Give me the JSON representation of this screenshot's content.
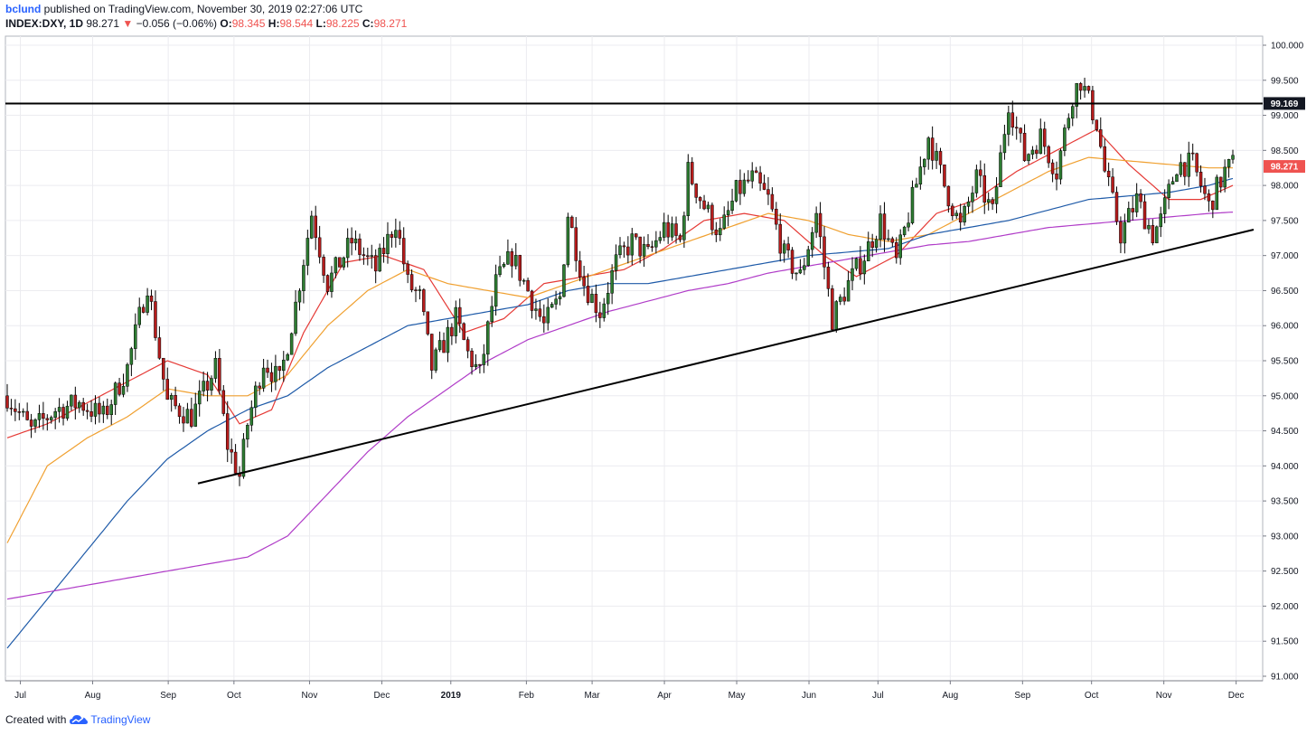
{
  "header": {
    "author": "bclund",
    "published_text": " published on TradingView.com, November 30, 2019 02:27:06 UTC",
    "symbol": "INDEX:DXY, 1D",
    "last": "98.271",
    "change": "−0.056 (−0.06%)",
    "open_label": "O:",
    "open": "98.345",
    "high_label": "H:",
    "high": "98.544",
    "low_label": "L:",
    "low": "98.225",
    "close_label": "C:",
    "close": "98.271"
  },
  "footer": {
    "created_with": "Created with",
    "brand": "TradingView"
  },
  "colors": {
    "up": "#26a69a",
    "up_body": "#2e7d32",
    "down": "#b71c1c",
    "ma_red": "#e53935",
    "ma_orange": "#f0a030",
    "ma_blue": "#1e5aa8",
    "ma_purple": "#b03cc8",
    "price_badge": "#ef5350"
  },
  "chart_data": {
    "type": "candlestick",
    "y_axis": {
      "ylim": [
        91.0,
        100.0
      ],
      "ticks": [
        "100.000",
        "99.500",
        "99.000",
        "98.500",
        "98.000",
        "97.500",
        "97.000",
        "96.500",
        "96.000",
        "95.500",
        "95.000",
        "94.500",
        "94.000",
        "93.500",
        "93.000",
        "92.500",
        "92.000",
        "91.500",
        "91.000"
      ]
    },
    "x_axis": {
      "labels": [
        "Jul",
        "Aug",
        "Sep",
        "Oct",
        "Nov",
        "Dec",
        "2019",
        "Feb",
        "Mar",
        "Apr",
        "May",
        "Jun",
        "Jul",
        "Aug",
        "Sep",
        "Oct",
        "Nov",
        "Dec"
      ]
    },
    "price_labels": [
      {
        "text": "99.169",
        "value": 99.169,
        "style": "dark"
      },
      {
        "text": "98.271",
        "value": 98.271,
        "style": "red"
      }
    ],
    "horizontal_line": {
      "value": 99.169
    },
    "trendline": {
      "from": [
        "Sep 2018",
        93.75
      ],
      "to": [
        "Dec 2019",
        97.37
      ]
    },
    "price_path": [
      [
        0,
        95.0
      ],
      [
        6,
        94.5
      ],
      [
        12,
        94.8
      ],
      [
        18,
        94.9
      ],
      [
        24,
        94.7
      ],
      [
        30,
        95.4
      ],
      [
        35,
        96.6
      ],
      [
        40,
        94.9
      ],
      [
        46,
        94.7
      ],
      [
        52,
        95.4
      ],
      [
        55,
        94.3
      ],
      [
        58,
        93.85
      ],
      [
        60,
        94.6
      ],
      [
        64,
        95.5
      ],
      [
        68,
        95.2
      ],
      [
        72,
        96.3
      ],
      [
        76,
        97.6
      ],
      [
        80,
        96.6
      ],
      [
        86,
        97.2
      ],
      [
        92,
        96.8
      ],
      [
        97,
        97.5
      ],
      [
        100,
        96.6
      ],
      [
        103,
        96.4
      ],
      [
        106,
        95.4
      ],
      [
        112,
        96.1
      ],
      [
        115,
        95.6
      ],
      [
        118,
        95.3
      ],
      [
        122,
        96.6
      ],
      [
        126,
        97.0
      ],
      [
        130,
        96.5
      ],
      [
        134,
        96.0
      ],
      [
        138,
        96.4
      ],
      [
        140,
        97.6
      ],
      [
        144,
        96.6
      ],
      [
        148,
        96.2
      ],
      [
        152,
        96.9
      ],
      [
        156,
        97.2
      ],
      [
        160,
        97.0
      ],
      [
        164,
        97.4
      ],
      [
        168,
        97.2
      ],
      [
        170,
        98.2
      ],
      [
        174,
        97.7
      ],
      [
        178,
        97.3
      ],
      [
        182,
        97.9
      ],
      [
        186,
        98.1
      ],
      [
        190,
        97.8
      ],
      [
        194,
        97.0
      ],
      [
        198,
        96.7
      ],
      [
        202,
        97.6
      ],
      [
        206,
        96.1
      ],
      [
        210,
        96.6
      ],
      [
        214,
        97.0
      ],
      [
        218,
        97.5
      ],
      [
        222,
        96.9
      ],
      [
        226,
        97.8
      ],
      [
        230,
        98.7
      ],
      [
        234,
        98.0
      ],
      [
        238,
        97.4
      ],
      [
        242,
        98.1
      ],
      [
        246,
        97.6
      ],
      [
        250,
        99.2
      ],
      [
        254,
        98.4
      ],
      [
        258,
        98.7
      ],
      [
        262,
        98.2
      ],
      [
        266,
        99.3
      ],
      [
        268,
        99.5
      ],
      [
        272,
        98.9
      ],
      [
        274,
        98.2
      ],
      [
        278,
        97.3
      ],
      [
        282,
        97.8
      ],
      [
        286,
        97.3
      ],
      [
        288,
        97.5
      ],
      [
        292,
        98.3
      ],
      [
        296,
        98.3
      ],
      [
        300,
        97.7
      ],
      [
        304,
        98.2
      ],
      [
        306,
        98.3
      ]
    ],
    "moving_averages": [
      {
        "color": "ma_red",
        "path": [
          [
            0,
            94.4
          ],
          [
            10,
            94.6
          ],
          [
            20,
            94.9
          ],
          [
            30,
            95.2
          ],
          [
            40,
            95.5
          ],
          [
            50,
            95.3
          ],
          [
            58,
            94.6
          ],
          [
            66,
            94.8
          ],
          [
            74,
            95.9
          ],
          [
            84,
            96.9
          ],
          [
            94,
            97.0
          ],
          [
            104,
            96.8
          ],
          [
            114,
            95.9
          ],
          [
            124,
            96.1
          ],
          [
            134,
            96.6
          ],
          [
            144,
            96.7
          ],
          [
            154,
            96.8
          ],
          [
            164,
            97.1
          ],
          [
            174,
            97.5
          ],
          [
            184,
            97.6
          ],
          [
            194,
            97.5
          ],
          [
            204,
            97.0
          ],
          [
            212,
            96.7
          ],
          [
            222,
            97.0
          ],
          [
            232,
            97.6
          ],
          [
            242,
            97.8
          ],
          [
            252,
            98.2
          ],
          [
            262,
            98.5
          ],
          [
            272,
            98.8
          ],
          [
            280,
            98.3
          ],
          [
            290,
            97.8
          ],
          [
            298,
            97.8
          ],
          [
            306,
            98.0
          ]
        ]
      },
      {
        "color": "ma_orange",
        "path": [
          [
            0,
            92.9
          ],
          [
            10,
            94.0
          ],
          [
            20,
            94.4
          ],
          [
            30,
            94.7
          ],
          [
            40,
            95.1
          ],
          [
            50,
            95.0
          ],
          [
            60,
            95.0
          ],
          [
            70,
            95.3
          ],
          [
            80,
            96.0
          ],
          [
            90,
            96.5
          ],
          [
            100,
            96.8
          ],
          [
            110,
            96.6
          ],
          [
            120,
            96.5
          ],
          [
            130,
            96.4
          ],
          [
            140,
            96.6
          ],
          [
            150,
            96.8
          ],
          [
            160,
            97.0
          ],
          [
            170,
            97.2
          ],
          [
            180,
            97.4
          ],
          [
            190,
            97.6
          ],
          [
            200,
            97.5
          ],
          [
            210,
            97.3
          ],
          [
            220,
            97.2
          ],
          [
            230,
            97.3
          ],
          [
            240,
            97.6
          ],
          [
            250,
            97.9
          ],
          [
            260,
            98.2
          ],
          [
            270,
            98.4
          ],
          [
            280,
            98.35
          ],
          [
            290,
            98.3
          ],
          [
            300,
            98.25
          ],
          [
            306,
            98.25
          ]
        ]
      },
      {
        "color": "ma_blue",
        "path": [
          [
            0,
            91.4
          ],
          [
            10,
            92.1
          ],
          [
            20,
            92.8
          ],
          [
            30,
            93.5
          ],
          [
            40,
            94.1
          ],
          [
            50,
            94.5
          ],
          [
            60,
            94.8
          ],
          [
            70,
            95.0
          ],
          [
            80,
            95.4
          ],
          [
            90,
            95.7
          ],
          [
            100,
            96.0
          ],
          [
            110,
            96.1
          ],
          [
            120,
            96.2
          ],
          [
            130,
            96.3
          ],
          [
            140,
            96.5
          ],
          [
            150,
            96.6
          ],
          [
            160,
            96.6
          ],
          [
            170,
            96.7
          ],
          [
            180,
            96.8
          ],
          [
            190,
            96.9
          ],
          [
            200,
            97.0
          ],
          [
            210,
            97.05
          ],
          [
            220,
            97.1
          ],
          [
            230,
            97.3
          ],
          [
            240,
            97.4
          ],
          [
            250,
            97.5
          ],
          [
            260,
            97.65
          ],
          [
            270,
            97.8
          ],
          [
            280,
            97.85
          ],
          [
            290,
            97.9
          ],
          [
            300,
            98.0
          ],
          [
            306,
            98.1
          ]
        ]
      },
      {
        "color": "ma_purple",
        "path": [
          [
            0,
            92.1
          ],
          [
            10,
            92.2
          ],
          [
            20,
            92.3
          ],
          [
            30,
            92.4
          ],
          [
            40,
            92.5
          ],
          [
            50,
            92.6
          ],
          [
            60,
            92.7
          ],
          [
            70,
            93.0
          ],
          [
            80,
            93.6
          ],
          [
            90,
            94.2
          ],
          [
            100,
            94.7
          ],
          [
            110,
            95.1
          ],
          [
            120,
            95.5
          ],
          [
            130,
            95.8
          ],
          [
            140,
            96.0
          ],
          [
            150,
            96.2
          ],
          [
            160,
            96.35
          ],
          [
            170,
            96.5
          ],
          [
            180,
            96.6
          ],
          [
            190,
            96.75
          ],
          [
            200,
            96.85
          ],
          [
            210,
            96.95
          ],
          [
            220,
            97.05
          ],
          [
            230,
            97.15
          ],
          [
            240,
            97.2
          ],
          [
            250,
            97.3
          ],
          [
            260,
            97.4
          ],
          [
            270,
            97.45
          ],
          [
            280,
            97.5
          ],
          [
            290,
            97.55
          ],
          [
            300,
            97.6
          ],
          [
            306,
            97.62
          ]
        ]
      }
    ]
  }
}
